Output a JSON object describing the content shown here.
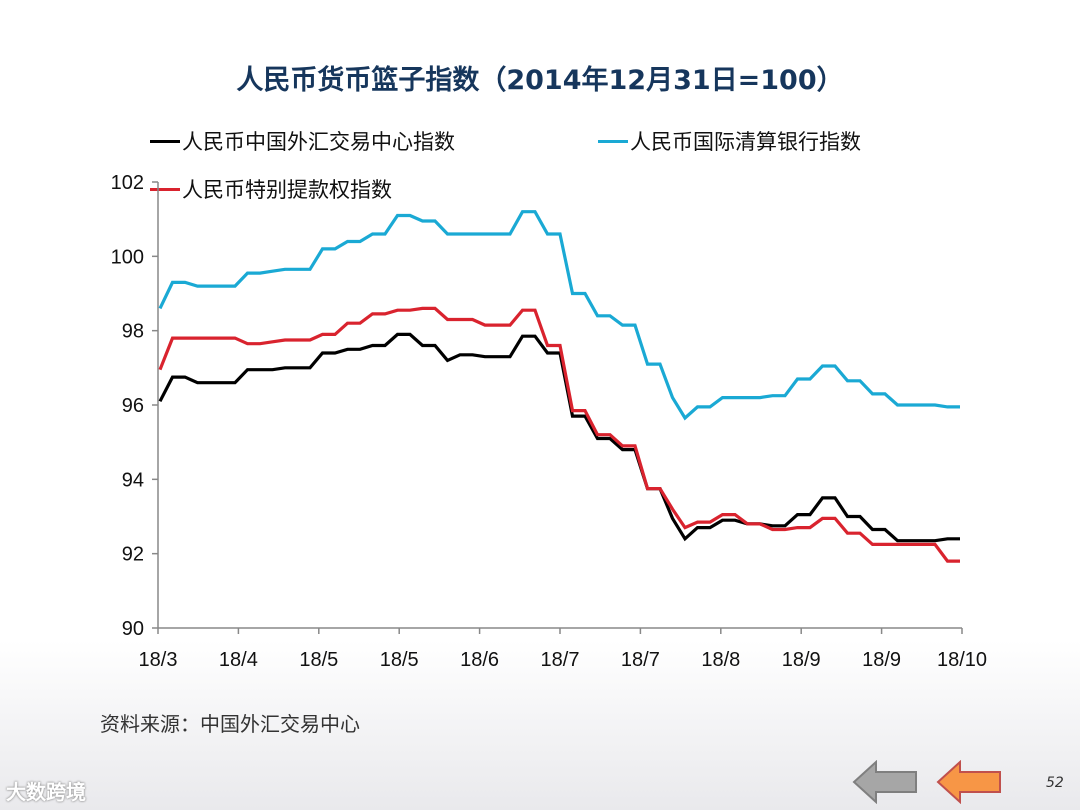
{
  "title": "人民币货币篮子指数（2014年12月31日=100）",
  "source": "资料来源：中国外汇交易中心",
  "page_number": "52",
  "watermark": "大数跨境",
  "nav": {
    "back_icon": "arrow-left-gray-icon",
    "prev_icon": "arrow-left-orange-icon"
  },
  "colors": {
    "cfets": "#000000",
    "bis": "#1aa9d4",
    "sdr": "#d9232e",
    "title": "#16365c"
  },
  "chart_data": {
    "type": "line",
    "title": "人民币货币篮子指数（2014年12月31日=100）",
    "xlabel": "",
    "ylabel": "",
    "ylim": [
      90,
      102
    ],
    "yticks": [
      90,
      92,
      94,
      96,
      98,
      100,
      102
    ],
    "xticks": [
      "18/3",
      "18/4",
      "18/5",
      "18/5",
      "18/6",
      "18/7",
      "18/7",
      "18/8",
      "18/9",
      "18/9",
      "18/10"
    ],
    "grid": false,
    "legend": "top",
    "series": [
      {
        "name": "人民币中国外汇交易中心指数",
        "color": "#000000",
        "values": [
          96.1,
          96.75,
          96.75,
          96.6,
          96.6,
          96.6,
          96.6,
          96.95,
          96.95,
          96.95,
          97.0,
          97.0,
          97.0,
          97.4,
          97.4,
          97.5,
          97.5,
          97.6,
          97.6,
          97.9,
          97.9,
          97.6,
          97.6,
          97.2,
          97.35,
          97.35,
          97.3,
          97.3,
          97.3,
          97.85,
          97.85,
          97.4,
          97.4,
          95.7,
          95.7,
          95.1,
          95.1,
          94.8,
          94.8,
          93.75,
          93.75,
          92.95,
          92.4,
          92.7,
          92.7,
          92.9,
          92.9,
          92.8,
          92.8,
          92.75,
          92.75,
          93.05,
          93.05,
          93.5,
          93.5,
          93.0,
          93.0,
          92.65,
          92.65,
          92.35,
          92.35,
          92.35,
          92.35,
          92.4,
          92.4
        ]
      },
      {
        "name": "人民币国际清算银行指数",
        "color": "#1aa9d4",
        "values": [
          98.6,
          99.3,
          99.3,
          99.2,
          99.2,
          99.2,
          99.2,
          99.55,
          99.55,
          99.6,
          99.65,
          99.65,
          99.65,
          100.2,
          100.2,
          100.4,
          100.4,
          100.6,
          100.6,
          101.1,
          101.1,
          100.95,
          100.95,
          100.6,
          100.6,
          100.6,
          100.6,
          100.6,
          100.6,
          101.2,
          101.2,
          100.6,
          100.6,
          99.0,
          99.0,
          98.4,
          98.4,
          98.15,
          98.15,
          97.1,
          97.1,
          96.2,
          95.65,
          95.95,
          95.95,
          96.2,
          96.2,
          96.2,
          96.2,
          96.25,
          96.25,
          96.7,
          96.7,
          97.05,
          97.05,
          96.65,
          96.65,
          96.3,
          96.3,
          96.0,
          96.0,
          96.0,
          96.0,
          95.95,
          95.95
        ]
      },
      {
        "name": "人民币特别提款权指数",
        "color": "#d9232e",
        "values": [
          96.95,
          97.8,
          97.8,
          97.8,
          97.8,
          97.8,
          97.8,
          97.65,
          97.65,
          97.7,
          97.75,
          97.75,
          97.75,
          97.9,
          97.9,
          98.2,
          98.2,
          98.45,
          98.45,
          98.55,
          98.55,
          98.6,
          98.6,
          98.3,
          98.3,
          98.3,
          98.15,
          98.15,
          98.15,
          98.55,
          98.55,
          97.6,
          97.6,
          95.85,
          95.85,
          95.2,
          95.2,
          94.9,
          94.9,
          93.75,
          93.75,
          93.2,
          92.7,
          92.85,
          92.85,
          93.05,
          93.05,
          92.8,
          92.8,
          92.65,
          92.65,
          92.7,
          92.7,
          92.95,
          92.95,
          92.55,
          92.55,
          92.25,
          92.25,
          92.25,
          92.25,
          92.25,
          92.25,
          91.8,
          91.8
        ]
      }
    ]
  }
}
